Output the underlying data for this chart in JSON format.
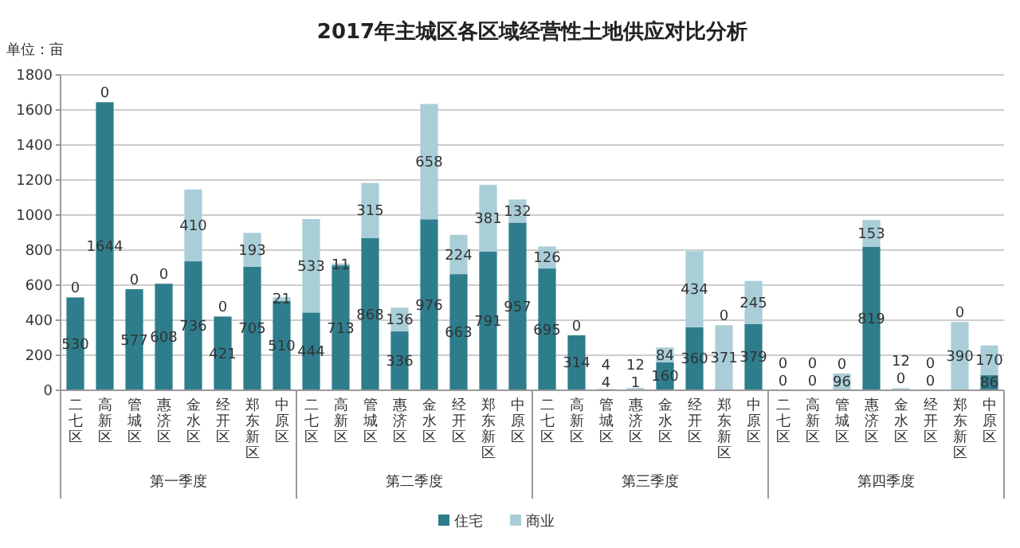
{
  "chart_data": {
    "type": "bar",
    "stacked": true,
    "title": "2017年主城区各区域经营性土地供应对比分析",
    "ylabel": "单位：亩",
    "categories": [
      "二七区",
      "高新区",
      "管城区",
      "惠济区",
      "金水区",
      "经开区",
      "郑东新区",
      "中原区",
      "二七区",
      "高新区",
      "管城区",
      "惠济区",
      "金水区",
      "经开区",
      "郑东新区",
      "中原区",
      "二七区",
      "高新区",
      "管城区",
      "惠济区",
      "金水区",
      "经开区",
      "郑东新区",
      "中原区",
      "二七区",
      "高新区",
      "管城区",
      "惠济区",
      "金水区",
      "经开区",
      "郑东新区",
      "中原区"
    ],
    "series": [
      {
        "name": "住宅",
        "color": "#2e7d8c",
        "values": [
          530,
          1644,
          577,
          608,
          736,
          421,
          705,
          510,
          444,
          713,
          868,
          336,
          976,
          663,
          791,
          957,
          695,
          314,
          4,
          1,
          160,
          360,
          0,
          379,
          0,
          0,
          0,
          819,
          0,
          0,
          0,
          86
        ]
      },
      {
        "name": "商业",
        "color": "#a9ced8",
        "values": [
          0,
          0,
          0,
          0,
          410,
          0,
          193,
          21,
          533,
          11,
          315,
          136,
          658,
          224,
          381,
          132,
          126,
          0,
          4,
          12,
          84,
          434,
          371,
          245,
          0,
          0,
          96,
          153,
          12,
          0,
          390,
          170
        ]
      }
    ],
    "annotations": [
      "第一季度",
      "第二季度",
      "第三季度",
      "第四季度"
    ],
    "ylim": [
      0,
      1800
    ],
    "yticks": [
      0,
      200,
      400,
      600,
      800,
      1000,
      1200,
      1400,
      1600,
      1800
    ],
    "grid": "y",
    "legend": "bottom",
    "data_labels": true
  }
}
